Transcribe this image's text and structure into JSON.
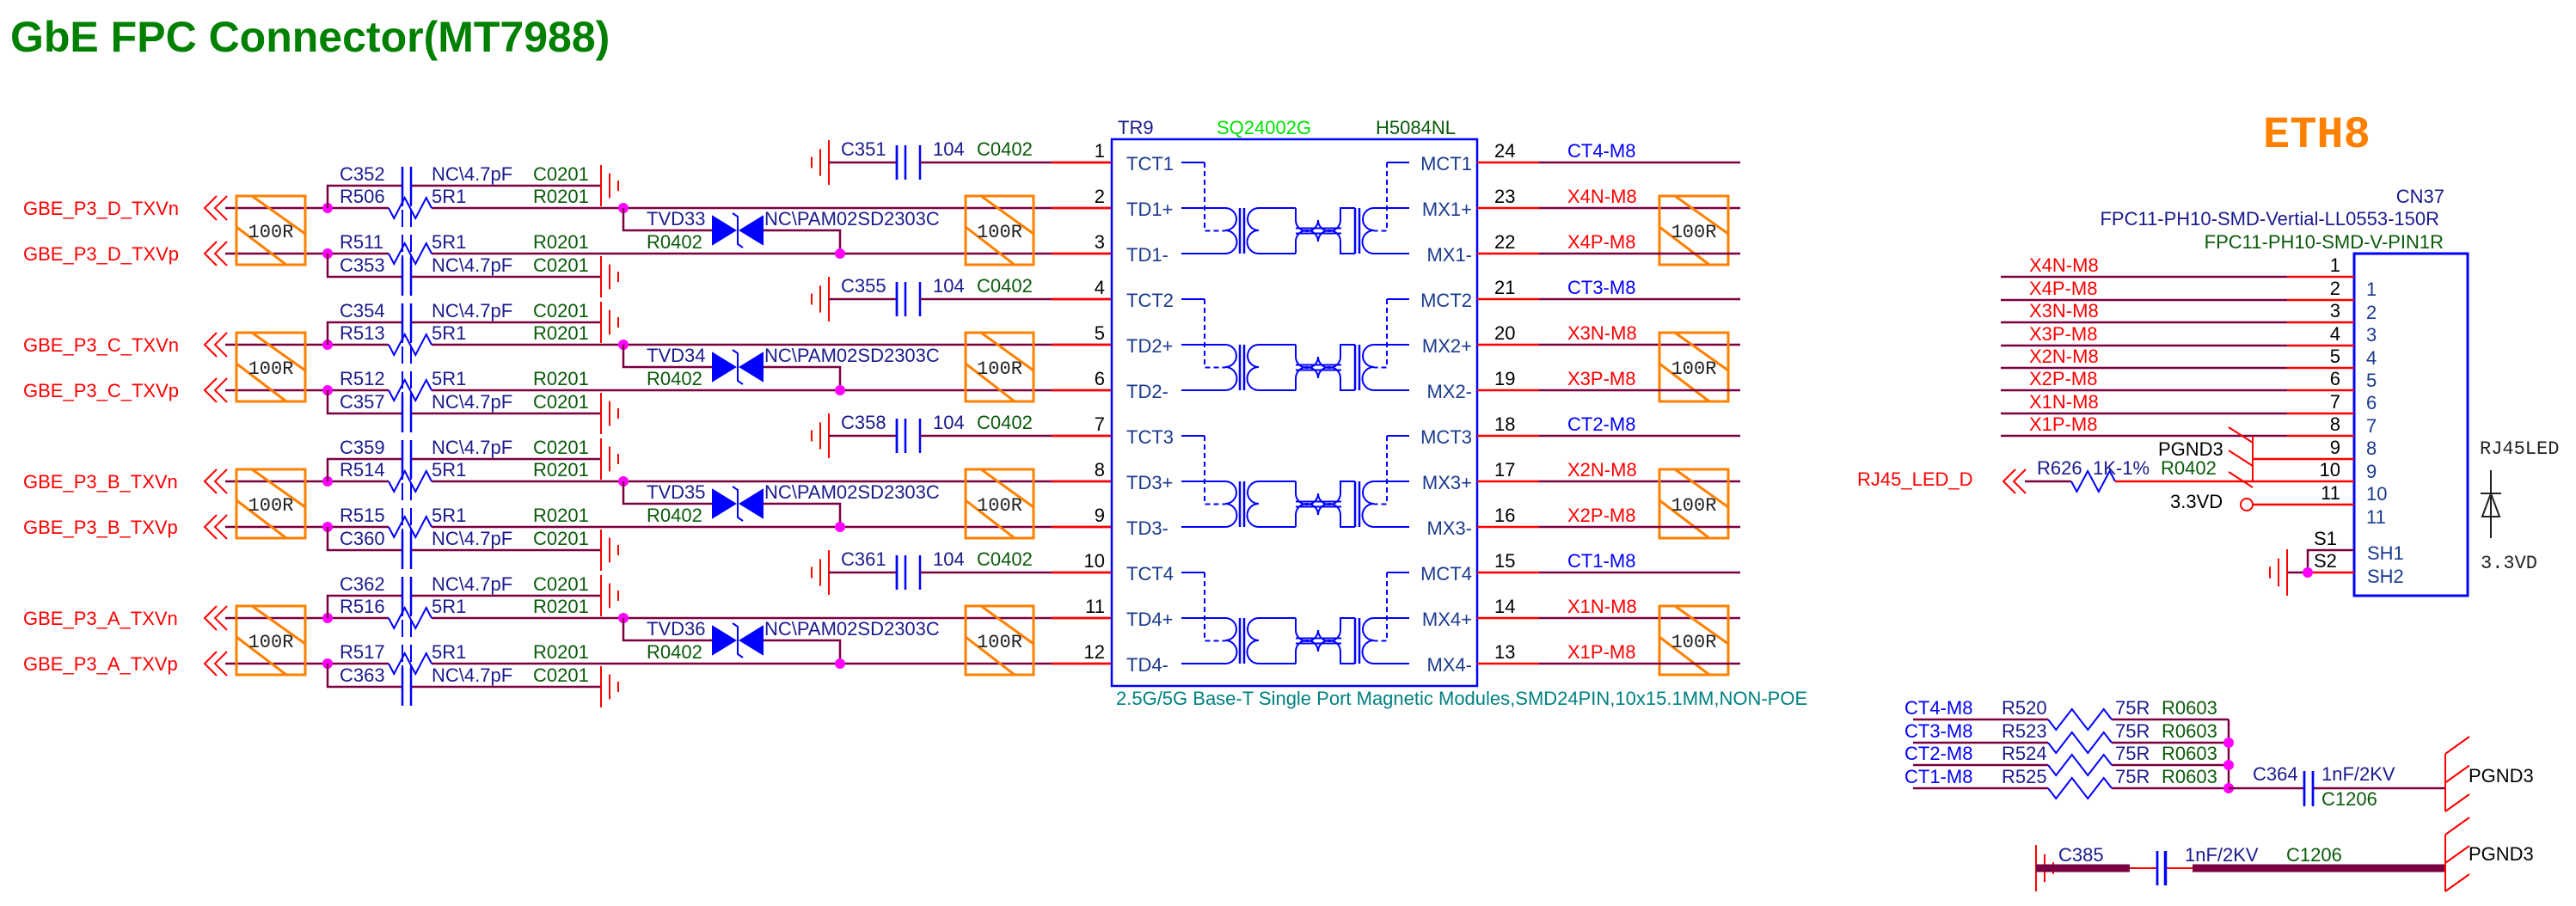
{
  "title": "GbE FPC Connector(MT7988)",
  "eth_label": "ETH8",
  "colors": {
    "title": "#008000",
    "net": "#ff0000",
    "wire": "#7a0040",
    "part": "#0000ff",
    "term": "#ff8000",
    "junction": "#ff00ff"
  },
  "left_channels": [
    {
      "net_n": "GBE_P3_D_TXVn",
      "net_p": "GBE_P3_D_TXVp",
      "term_in": "100R",
      "term_out": "100R",
      "cap_n": {
        "ref": "C352",
        "value": "NC\\4.7pF",
        "pkg": "C0201"
      },
      "res_n": {
        "ref": "R506",
        "value": "5R1",
        "pkg": "R0201"
      },
      "res_p": {
        "ref": "R511",
        "value": "5R1",
        "pkg": "R0201"
      },
      "cap_p": {
        "ref": "C353",
        "value": "NC\\4.7pF",
        "pkg": "C0201"
      },
      "tvd": {
        "ref": "TVD33",
        "value": "NC\\PAM02SD2303C",
        "pkg": "R0402"
      },
      "ct_cap": {
        "ref": "C351",
        "value": "104",
        "pkg": "C0402"
      }
    },
    {
      "net_n": "GBE_P3_C_TXVn",
      "net_p": "GBE_P3_C_TXVp",
      "term_in": "100R",
      "term_out": "100R",
      "cap_n": {
        "ref": "C354",
        "value": "NC\\4.7pF",
        "pkg": "C0201"
      },
      "res_n": {
        "ref": "R513",
        "value": "5R1",
        "pkg": "R0201"
      },
      "res_p": {
        "ref": "R512",
        "value": "5R1",
        "pkg": "R0201"
      },
      "cap_p": {
        "ref": "C357",
        "value": "NC\\4.7pF",
        "pkg": "C0201"
      },
      "tvd": {
        "ref": "TVD34",
        "value": "NC\\PAM02SD2303C",
        "pkg": "R0402"
      },
      "ct_cap": {
        "ref": "C355",
        "value": "104",
        "pkg": "C0402"
      }
    },
    {
      "net_n": "GBE_P3_B_TXVn",
      "net_p": "GBE_P3_B_TXVp",
      "term_in": "100R",
      "term_out": "100R",
      "cap_n": {
        "ref": "C359",
        "value": "NC\\4.7pF",
        "pkg": "C0201"
      },
      "res_n": {
        "ref": "R514",
        "value": "5R1",
        "pkg": "R0201"
      },
      "res_p": {
        "ref": "R515",
        "value": "5R1",
        "pkg": "R0201"
      },
      "cap_p": {
        "ref": "C360",
        "value": "NC\\4.7pF",
        "pkg": "C0201"
      },
      "tvd": {
        "ref": "TVD35",
        "value": "NC\\PAM02SD2303C",
        "pkg": "R0402"
      },
      "ct_cap": {
        "ref": "C358",
        "value": "104",
        "pkg": "C0402"
      }
    },
    {
      "net_n": "GBE_P3_A_TXVn",
      "net_p": "GBE_P3_A_TXVp",
      "term_in": "100R",
      "term_out": "100R",
      "cap_n": {
        "ref": "C362",
        "value": "NC\\4.7pF",
        "pkg": "C0201"
      },
      "res_n": {
        "ref": "R516",
        "value": "5R1",
        "pkg": "R0201"
      },
      "res_p": {
        "ref": "R517",
        "value": "5R1",
        "pkg": "R0201"
      },
      "cap_p": {
        "ref": "C363",
        "value": "NC\\4.7pF",
        "pkg": "C0201"
      },
      "tvd": {
        "ref": "TVD36",
        "value": "NC\\PAM02SD2303C",
        "pkg": "R0402"
      },
      "ct_cap": {
        "ref": "C361",
        "value": "104",
        "pkg": "C0402"
      }
    }
  ],
  "module": {
    "ref": "TR9",
    "part": "SQ24002G",
    "pn": "H5084NL",
    "caption": "2.5G/5G Base-T Single Port Magnetic Modules,SMD24PIN,10x15.1MM,NON-POE",
    "left_pins": [
      {
        "num": "1",
        "name": "TCT1"
      },
      {
        "num": "2",
        "name": "TD1+"
      },
      {
        "num": "3",
        "name": "TD1-"
      },
      {
        "num": "4",
        "name": "TCT2"
      },
      {
        "num": "5",
        "name": "TD2+"
      },
      {
        "num": "6",
        "name": "TD2-"
      },
      {
        "num": "7",
        "name": "TCT3"
      },
      {
        "num": "8",
        "name": "TD3+"
      },
      {
        "num": "9",
        "name": "TD3-"
      },
      {
        "num": "10",
        "name": "TCT4"
      },
      {
        "num": "11",
        "name": "TD4+"
      },
      {
        "num": "12",
        "name": "TD4-"
      }
    ],
    "right_pins": [
      {
        "num": "24",
        "name": "MCT1",
        "net": "CT4-M8"
      },
      {
        "num": "23",
        "name": "MX1+",
        "net": "X4N-M8"
      },
      {
        "num": "22",
        "name": "MX1-",
        "net": "X4P-M8"
      },
      {
        "num": "21",
        "name": "MCT2",
        "net": "CT3-M8"
      },
      {
        "num": "20",
        "name": "MX2+",
        "net": "X3N-M8"
      },
      {
        "num": "19",
        "name": "MX2-",
        "net": "X3P-M8"
      },
      {
        "num": "18",
        "name": "MCT3",
        "net": "CT2-M8"
      },
      {
        "num": "17",
        "name": "MX3+",
        "net": "X2N-M8"
      },
      {
        "num": "16",
        "name": "MX3-",
        "net": "X2P-M8"
      },
      {
        "num": "15",
        "name": "MCT4",
        "net": "CT1-M8"
      },
      {
        "num": "14",
        "name": "MX4+",
        "net": "X1N-M8"
      },
      {
        "num": "13",
        "name": "MX4-",
        "net": "X1P-M8"
      }
    ],
    "right_terms": [
      "100R",
      "100R",
      "100R",
      "100R"
    ]
  },
  "connector": {
    "ref": "CN37",
    "part": "FPC11-PH10-SMD-Vertial-LL0553-150R",
    "footprint": "FPC11-PH10-SMD-V-PIN1R",
    "pins": [
      {
        "num": "1",
        "net": "X4N-M8"
      },
      {
        "num": "2",
        "net": "X4P-M8"
      },
      {
        "num": "3",
        "net": "X3N-M8"
      },
      {
        "num": "4",
        "net": "X3P-M8"
      },
      {
        "num": "5",
        "net": "X2N-M8"
      },
      {
        "num": "6",
        "net": "X2P-M8"
      },
      {
        "num": "7",
        "net": "X1N-M8"
      },
      {
        "num": "8",
        "net": "X1P-M8"
      },
      {
        "num": "9",
        "net": ""
      },
      {
        "num": "10",
        "net": ""
      },
      {
        "num": "11",
        "net": ""
      }
    ],
    "pgnd_label": "PGND3",
    "led_net": "RJ45_LED_D",
    "led_res": {
      "ref": "R626",
      "value": "1K-1%",
      "pkg": "R0402"
    },
    "power": "3.3VD",
    "shield_pins": [
      {
        "num": "S1",
        "name": "SH1"
      },
      {
        "num": "S2",
        "name": "SH2"
      }
    ],
    "led_symbol": {
      "label": "RJ45LED",
      "supply": "3.3VD"
    }
  },
  "termination": {
    "rows": [
      {
        "net": "CT4-M8",
        "ref": "R520",
        "value": "75R",
        "pkg": "R0603"
      },
      {
        "net": "CT3-M8",
        "ref": "R523",
        "value": "75R",
        "pkg": "R0603"
      },
      {
        "net": "CT2-M8",
        "ref": "R524",
        "value": "75R",
        "pkg": "R0603"
      },
      {
        "net": "CT1-M8",
        "ref": "R525",
        "value": "75R",
        "pkg": "R0603"
      }
    ],
    "cap": {
      "ref": "C364",
      "value": "1nF/2KV",
      "pkg": "C1206"
    },
    "gnd": "PGND3",
    "cap2": {
      "ref": "C385",
      "value": "1nF/2KV",
      "pkg": "C1206"
    },
    "gnd2": "PGND3"
  }
}
